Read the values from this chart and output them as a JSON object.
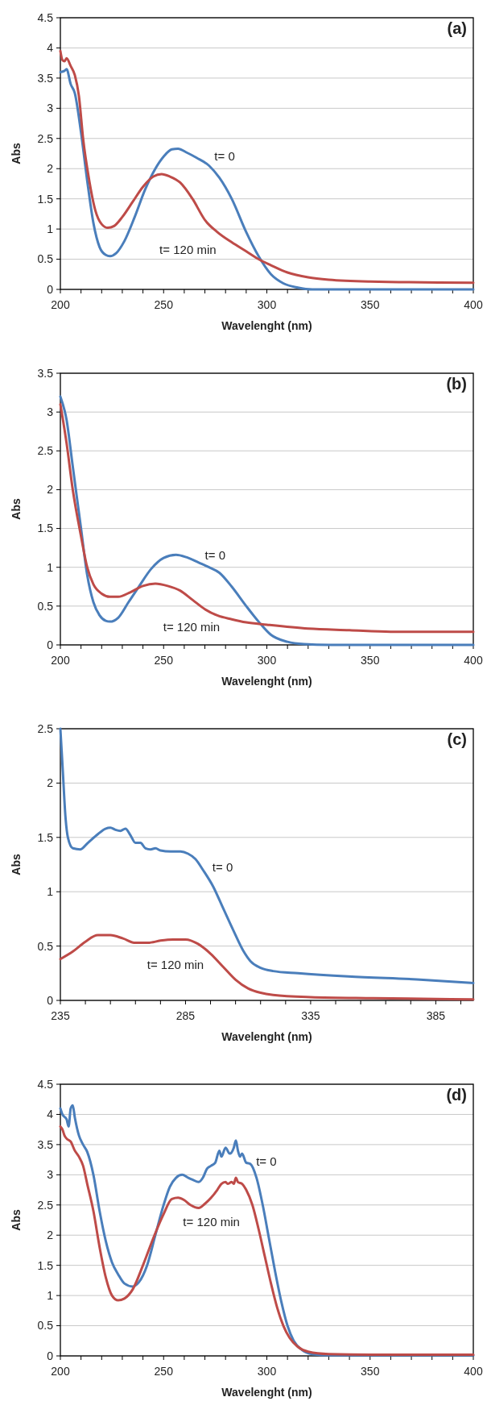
{
  "chart_data": [
    {
      "type": "line",
      "title": "(a)",
      "xlabel": "Wavelenght (nm)",
      "ylabel": "Abs",
      "xlim": [
        200,
        400
      ],
      "ylim": [
        0,
        4.5
      ],
      "xticks": [
        200,
        {
          "value": 210,
          "label": null
        },
        {
          "value": 220,
          "label": null
        },
        {
          "value": 230,
          "label": null
        },
        {
          "value": 240,
          "label": null
        },
        250,
        {
          "value": 260,
          "label": null
        },
        {
          "value": 270,
          "label": null
        },
        {
          "value": 280,
          "label": null
        },
        {
          "value": 290,
          "label": null
        },
        300,
        {
          "value": 310,
          "label": null
        },
        {
          "value": 320,
          "label": null
        },
        {
          "value": 330,
          "label": null
        },
        {
          "value": 340,
          "label": null
        },
        350,
        {
          "value": 360,
          "label": null
        },
        {
          "value": 370,
          "label": null
        },
        {
          "value": 380,
          "label": null
        },
        {
          "value": 390,
          "label": null
        },
        400
      ],
      "yticks": [
        0,
        0.5,
        1,
        1.5,
        2,
        2.5,
        3,
        3.5,
        4,
        4.5
      ],
      "grid": "y",
      "marker": "none",
      "line_style": "solid",
      "series": [
        {
          "name": "t= 0",
          "color": "#4a7ebb",
          "x": [
            200,
            202,
            203,
            205,
            207,
            210,
            213,
            216,
            219,
            222,
            224,
            227,
            231,
            236,
            241,
            246,
            250,
            254,
            257,
            261,
            266,
            272,
            277,
            283,
            290,
            296,
            302,
            308,
            315,
            322,
            340,
            400
          ],
          "values": [
            3.6,
            3.62,
            3.65,
            3.4,
            3.25,
            2.6,
            1.8,
            1.1,
            0.7,
            0.57,
            0.55,
            0.6,
            0.8,
            1.2,
            1.65,
            2.0,
            2.2,
            2.32,
            2.33,
            2.27,
            2.18,
            2.05,
            1.85,
            1.5,
            0.95,
            0.55,
            0.25,
            0.1,
            0.03,
            0,
            0,
            0
          ]
        },
        {
          "name": "t= 120 min",
          "color": "#be4b48",
          "x": [
            200,
            201,
            202,
            203,
            205,
            207,
            209,
            211,
            214,
            217,
            220,
            223,
            226,
            230,
            235,
            240,
            245,
            249,
            253,
            258,
            264,
            270,
            276,
            283,
            290,
            296,
            302,
            310,
            320,
            330,
            350,
            400
          ],
          "values": [
            3.95,
            3.8,
            3.78,
            3.83,
            3.7,
            3.55,
            3.2,
            2.5,
            1.8,
            1.3,
            1.08,
            1.02,
            1.05,
            1.2,
            1.45,
            1.7,
            1.87,
            1.91,
            1.87,
            1.77,
            1.5,
            1.15,
            0.95,
            0.78,
            0.63,
            0.5,
            0.4,
            0.28,
            0.2,
            0.16,
            0.13,
            0.11
          ]
        }
      ]
    },
    {
      "type": "line",
      "title": "(b)",
      "xlabel": "Wavelenght (nm)",
      "ylabel": "Abs",
      "xlim": [
        200,
        400
      ],
      "ylim": [
        0,
        3.5
      ],
      "xticks": [
        200,
        {
          "value": 210,
          "label": null
        },
        {
          "value": 220,
          "label": null
        },
        {
          "value": 230,
          "label": null
        },
        {
          "value": 240,
          "label": null
        },
        250,
        {
          "value": 260,
          "label": null
        },
        {
          "value": 270,
          "label": null
        },
        {
          "value": 280,
          "label": null
        },
        {
          "value": 290,
          "label": null
        },
        300,
        {
          "value": 310,
          "label": null
        },
        {
          "value": 320,
          "label": null
        },
        {
          "value": 330,
          "label": null
        },
        {
          "value": 340,
          "label": null
        },
        350,
        {
          "value": 360,
          "label": null
        },
        {
          "value": 370,
          "label": null
        },
        {
          "value": 380,
          "label": null
        },
        {
          "value": 390,
          "label": null
        },
        400
      ],
      "yticks": [
        0,
        0.5,
        1,
        1.5,
        2,
        2.5,
        3,
        3.5
      ],
      "grid": "y",
      "marker": "none",
      "line_style": "solid",
      "series": [
        {
          "name": "t= 0",
          "color": "#4a7ebb",
          "x": [
            200,
            203,
            206,
            210,
            213,
            216,
            219,
            222,
            224,
            228,
            233,
            238,
            244,
            250,
            256,
            261,
            267,
            272,
            277,
            283,
            290,
            296,
            302,
            310,
            318,
            330,
            400
          ],
          "values": [
            3.2,
            2.9,
            2.3,
            1.5,
            0.9,
            0.55,
            0.38,
            0.31,
            0.3,
            0.35,
            0.55,
            0.75,
            0.98,
            1.12,
            1.16,
            1.13,
            1.06,
            1.0,
            0.93,
            0.75,
            0.5,
            0.3,
            0.13,
            0.04,
            0.01,
            0,
            0
          ]
        },
        {
          "name": "t= 120 min",
          "color": "#be4b48",
          "x": [
            200,
            203,
            206,
            210,
            213,
            216,
            220,
            224,
            228,
            234,
            240,
            246,
            252,
            258,
            264,
            270,
            276,
            283,
            290,
            300,
            320,
            340,
            360,
            400
          ],
          "values": [
            3.1,
            2.6,
            2.0,
            1.4,
            1.0,
            0.78,
            0.66,
            0.62,
            0.62,
            0.68,
            0.76,
            0.79,
            0.76,
            0.7,
            0.58,
            0.46,
            0.38,
            0.33,
            0.29,
            0.26,
            0.21,
            0.19,
            0.17,
            0.17
          ]
        }
      ]
    },
    {
      "type": "line",
      "title": "(c)",
      "xlabel": "Wavelenght (nm)",
      "ylabel": "Abs",
      "xlim": [
        235,
        400
      ],
      "ylim": [
        0,
        2.5
      ],
      "xticks": [
        235,
        {
          "value": 245,
          "label": null
        },
        {
          "value": 255,
          "label": null
        },
        {
          "value": 265,
          "label": null
        },
        {
          "value": 275,
          "label": null
        },
        285,
        {
          "value": 295,
          "label": null
        },
        {
          "value": 305,
          "label": null
        },
        {
          "value": 315,
          "label": null
        },
        {
          "value": 325,
          "label": null
        },
        335,
        {
          "value": 345,
          "label": null
        },
        {
          "value": 355,
          "label": null
        },
        {
          "value": 365,
          "label": null
        },
        {
          "value": 375,
          "label": null
        },
        385,
        {
          "value": 395,
          "label": null
        }
      ],
      "yticks": [
        0,
        0.5,
        1,
        1.5,
        2,
        2.5
      ],
      "grid": "y",
      "marker": "none",
      "line_style": "solid",
      "series": [
        {
          "name": "t= 0",
          "color": "#4a7ebb",
          "x": [
            235,
            236,
            237,
            238,
            240,
            243,
            246,
            250,
            253,
            255,
            257,
            259,
            261,
            263,
            265,
            267,
            269,
            271,
            273,
            275,
            279,
            283,
            286,
            289,
            292,
            296,
            300,
            304,
            308,
            311,
            315,
            320,
            330,
            350,
            380,
            400
          ],
          "values": [
            2.5,
            2.1,
            1.7,
            1.5,
            1.4,
            1.39,
            1.45,
            1.53,
            1.58,
            1.59,
            1.57,
            1.56,
            1.58,
            1.52,
            1.45,
            1.45,
            1.4,
            1.39,
            1.4,
            1.38,
            1.37,
            1.37,
            1.35,
            1.3,
            1.2,
            1.05,
            0.85,
            0.65,
            0.46,
            0.36,
            0.3,
            0.27,
            0.25,
            0.22,
            0.19,
            0.16
          ]
        },
        {
          "name": "t= 120 min",
          "color": "#be4b48",
          "x": [
            235,
            240,
            245,
            250,
            255,
            260,
            265,
            270,
            275,
            280,
            285,
            290,
            295,
            300,
            305,
            310,
            315,
            320,
            335,
            360,
            400
          ],
          "values": [
            0.38,
            0.45,
            0.54,
            0.6,
            0.6,
            0.57,
            0.53,
            0.53,
            0.55,
            0.56,
            0.56,
            0.52,
            0.43,
            0.31,
            0.19,
            0.11,
            0.07,
            0.05,
            0.03,
            0.02,
            0.01
          ]
        }
      ]
    },
    {
      "type": "line",
      "title": "(d)",
      "xlabel": "Wavelenght (nm)",
      "ylabel": "Abs",
      "xlim": [
        200,
        400
      ],
      "ylim": [
        0,
        4.5
      ],
      "xticks": [
        200,
        {
          "value": 210,
          "label": null
        },
        {
          "value": 220,
          "label": null
        },
        {
          "value": 230,
          "label": null
        },
        {
          "value": 240,
          "label": null
        },
        250,
        {
          "value": 260,
          "label": null
        },
        {
          "value": 270,
          "label": null
        },
        {
          "value": 280,
          "label": null
        },
        {
          "value": 290,
          "label": null
        },
        300,
        {
          "value": 310,
          "label": null
        },
        {
          "value": 320,
          "label": null
        },
        {
          "value": 330,
          "label": null
        },
        {
          "value": 340,
          "label": null
        },
        350,
        {
          "value": 360,
          "label": null
        },
        {
          "value": 370,
          "label": null
        },
        {
          "value": 380,
          "label": null
        },
        {
          "value": 390,
          "label": null
        },
        400
      ],
      "yticks": [
        0,
        0.5,
        1,
        1.5,
        2,
        2.5,
        3,
        3.5,
        4,
        4.5
      ],
      "grid": "y",
      "marker": "none",
      "line_style": "solid",
      "series": [
        {
          "name": "t= 0",
          "color": "#4a7ebb",
          "x": [
            200,
            201,
            203,
            204,
            205,
            206,
            207,
            209,
            211,
            213,
            216,
            219,
            222,
            225,
            228,
            231,
            235,
            238,
            242,
            246,
            250,
            253,
            256,
            259,
            262,
            264,
            267,
            269,
            271,
            273,
            275,
            277,
            278,
            280,
            282,
            284,
            285,
            286,
            287,
            288,
            290,
            292,
            295,
            298,
            301,
            304,
            307,
            310,
            313,
            317,
            322,
            330,
            400
          ],
          "values": [
            4.1,
            4.0,
            3.92,
            3.8,
            4.1,
            4.15,
            3.95,
            3.65,
            3.5,
            3.38,
            3.0,
            2.4,
            1.9,
            1.55,
            1.35,
            1.2,
            1.15,
            1.22,
            1.5,
            2.0,
            2.5,
            2.8,
            2.95,
            3.0,
            2.95,
            2.92,
            2.88,
            2.95,
            3.1,
            3.15,
            3.2,
            3.4,
            3.3,
            3.45,
            3.35,
            3.45,
            3.57,
            3.4,
            3.3,
            3.35,
            3.2,
            3.18,
            2.95,
            2.5,
            1.95,
            1.4,
            0.9,
            0.5,
            0.25,
            0.1,
            0.03,
            0.01,
            0.01
          ]
        },
        {
          "name": "t= 120 min",
          "color": "#be4b48",
          "x": [
            200,
            201,
            202,
            203,
            205,
            207,
            209,
            211,
            213,
            216,
            219,
            222,
            225,
            228,
            231,
            235,
            240,
            245,
            250,
            254,
            257,
            260,
            263,
            267,
            270,
            273,
            276,
            278,
            280,
            281,
            283,
            284,
            285,
            286,
            288,
            290,
            293,
            296,
            299,
            302,
            305,
            308,
            311,
            315,
            320,
            330,
            350,
            400
          ],
          "values": [
            3.8,
            3.75,
            3.65,
            3.6,
            3.55,
            3.4,
            3.3,
            3.15,
            2.85,
            2.4,
            1.8,
            1.3,
            1.0,
            0.92,
            0.95,
            1.1,
            1.5,
            1.95,
            2.35,
            2.6,
            2.62,
            2.58,
            2.5,
            2.45,
            2.52,
            2.62,
            2.75,
            2.85,
            2.88,
            2.85,
            2.88,
            2.85,
            2.95,
            2.88,
            2.85,
            2.75,
            2.5,
            2.1,
            1.65,
            1.2,
            0.8,
            0.5,
            0.3,
            0.15,
            0.07,
            0.03,
            0.02,
            0.02
          ]
        }
      ]
    }
  ]
}
